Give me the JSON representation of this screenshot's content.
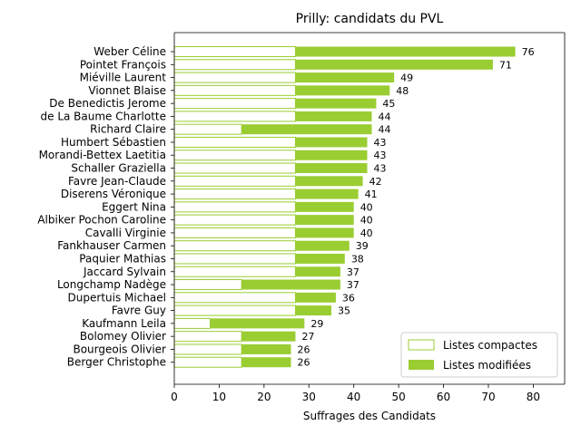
{
  "chart_data": {
    "type": "bar",
    "orientation": "horizontal",
    "stacked": true,
    "title": "Prilly: candidats du PVL",
    "xlabel": "Suffrages des Candidats",
    "ylabel": "",
    "xlim": [
      0,
      87
    ],
    "xticks": [
      0,
      10,
      20,
      30,
      40,
      50,
      60,
      70,
      80
    ],
    "grid": false,
    "legend_position": "lower-right",
    "categories": [
      "Weber Céline",
      "Pointet François",
      "Miéville Laurent",
      "Vionnet Blaise",
      "De Benedictis Jerome",
      "de La Baume Charlotte",
      "Richard Claire",
      "Humbert Sébastien",
      "Morandi-Bettex Laetitia",
      "Schaller Graziella",
      "Favre Jean-Claude",
      "Diserens Véronique",
      "Eggert Nina",
      "Albiker Pochon Caroline",
      "Cavalli Virginie",
      "Fankhauser Carmen",
      "Paquier Mathias",
      "Jaccard Sylvain",
      "Longchamp Nadège",
      "Dupertuis Michael",
      "Favre Guy",
      "Kaufmann Leila",
      "Bolomey Olivier",
      "Bourgeois Olivier",
      "Berger Christophe"
    ],
    "series": [
      {
        "name": "Listes compactes",
        "color": "#9acd32",
        "style": "outline",
        "values": [
          27,
          27,
          27,
          27,
          27,
          27,
          15,
          27,
          27,
          27,
          27,
          27,
          27,
          27,
          27,
          27,
          27,
          27,
          15,
          27,
          27,
          8,
          15,
          15,
          15
        ]
      },
      {
        "name": "Listes modifiées",
        "color": "#9acd32",
        "style": "filled",
        "values": [
          49,
          44,
          22,
          21,
          18,
          17,
          29,
          16,
          16,
          16,
          15,
          14,
          13,
          13,
          13,
          12,
          11,
          10,
          22,
          9,
          8,
          21,
          12,
          11,
          11
        ]
      }
    ],
    "totals": [
      76,
      71,
      49,
      48,
      45,
      44,
      44,
      43,
      43,
      43,
      42,
      41,
      40,
      40,
      40,
      39,
      38,
      37,
      37,
      36,
      35,
      29,
      27,
      26,
      26
    ]
  }
}
